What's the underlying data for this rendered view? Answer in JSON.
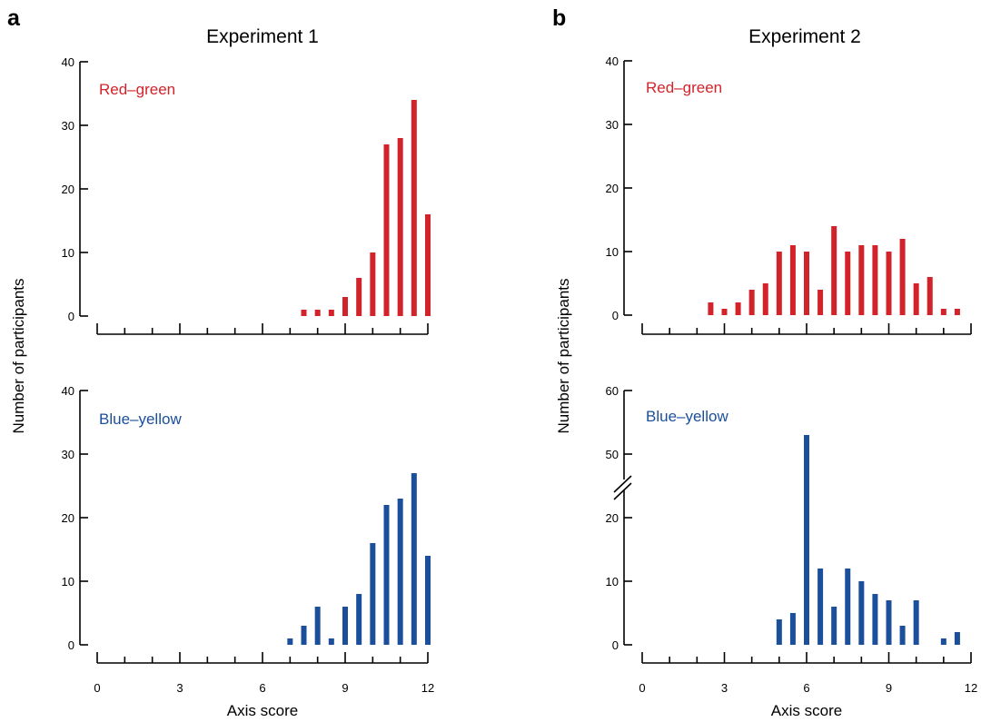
{
  "figure": {
    "panel_a": "a",
    "panel_b": "b",
    "ylabel_a": "Number of participants",
    "ylabel_b": "Number of participants"
  },
  "colors": {
    "red": "#d2232a",
    "blue": "#1b4f9c"
  },
  "chart_data": [
    {
      "type": "bar",
      "title": "Experiment 1",
      "label": "Red–green",
      "color": "#d2232a",
      "xlabel": "",
      "ylabel": "Number of participants",
      "xlim": [
        0,
        12
      ],
      "ylim": [
        0,
        40
      ],
      "yticks": [
        0,
        10,
        20,
        30,
        40
      ],
      "x": [
        7.5,
        8,
        8.5,
        9,
        9.5,
        10,
        10.5,
        11,
        11.5,
        12
      ],
      "values": [
        1,
        1,
        1,
        3,
        6,
        10,
        27,
        28,
        34,
        16
      ]
    },
    {
      "type": "bar",
      "title": "",
      "label": "Blue–yellow",
      "color": "#1b4f9c",
      "xlabel": "Axis score",
      "ylabel": "Number of participants",
      "xlim": [
        0,
        12
      ],
      "ylim": [
        0,
        40
      ],
      "yticks": [
        0,
        10,
        20,
        30,
        40
      ],
      "xticks": [
        0,
        3,
        6,
        9,
        12
      ],
      "x": [
        7,
        7.5,
        8,
        8.5,
        9,
        9.5,
        10,
        10.5,
        11,
        11.5,
        12
      ],
      "values": [
        1,
        3,
        6,
        1,
        6,
        8,
        16,
        22,
        23,
        27,
        14
      ]
    },
    {
      "type": "bar",
      "title": "Experiment 2",
      "label": "Red–green",
      "color": "#d2232a",
      "xlabel": "",
      "ylabel": "Number of participants",
      "xlim": [
        0,
        12
      ],
      "ylim": [
        0,
        40
      ],
      "yticks": [
        0,
        10,
        20,
        30,
        40
      ],
      "x": [
        2.5,
        3,
        3.5,
        4,
        4.5,
        5,
        5.5,
        6,
        6.5,
        7,
        7.5,
        8,
        8.5,
        9,
        9.5,
        10,
        10.5,
        11,
        11.5
      ],
      "values": [
        2,
        1,
        2,
        4,
        5,
        10,
        11,
        10,
        4,
        14,
        10,
        11,
        11,
        10,
        12,
        5,
        6,
        1,
        1
      ]
    },
    {
      "type": "bar",
      "title": "",
      "label": "Blue–yellow",
      "color": "#1b4f9c",
      "xlabel": "Axis score",
      "ylabel": "Number of participants",
      "xlim": [
        0,
        12
      ],
      "ylim": [
        0,
        60
      ],
      "broken_axis": [
        25,
        45
      ],
      "yticks": [
        0,
        10,
        20,
        50,
        60
      ],
      "xticks": [
        0,
        3,
        6,
        9,
        12
      ],
      "x": [
        5,
        5.5,
        6,
        6.5,
        7,
        7.5,
        8,
        8.5,
        9,
        9.5,
        10,
        11,
        11.5
      ],
      "values": [
        4,
        5,
        53,
        12,
        6,
        12,
        10,
        8,
        7,
        3,
        7,
        1,
        2
      ]
    }
  ]
}
